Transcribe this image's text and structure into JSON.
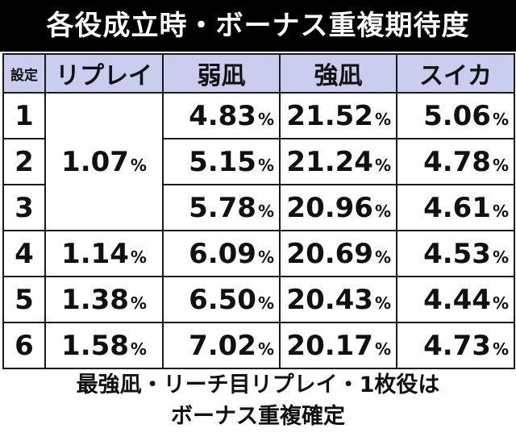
{
  "title": "各役成立時・ボーナス重複期待度",
  "columns": [
    "設定",
    "リプレイ",
    "弱凪",
    "強凪",
    "スイカ"
  ],
  "unit": "%",
  "rows": [
    {
      "setting": "1",
      "weak": "4.83",
      "strong": "21.52",
      "suika": "5.06"
    },
    {
      "setting": "2",
      "weak": "5.15",
      "strong": "21.24",
      "suika": "4.78"
    },
    {
      "setting": "3",
      "weak": "5.78",
      "strong": "20.96",
      "suika": "4.61"
    },
    {
      "setting": "4",
      "replay": "1.14",
      "weak": "6.09",
      "strong": "20.69",
      "suika": "4.53"
    },
    {
      "setting": "5",
      "replay": "1.38",
      "weak": "6.50",
      "strong": "20.43",
      "suika": "4.44"
    },
    {
      "setting": "6",
      "replay": "1.58",
      "weak": "7.02",
      "strong": "20.17",
      "suika": "4.73"
    }
  ],
  "replay_merged_1_3": "1.07",
  "footer": [
    "最強凪・リーチ目リプレイ・1枚役は",
    "ボーナス重複確定"
  ]
}
